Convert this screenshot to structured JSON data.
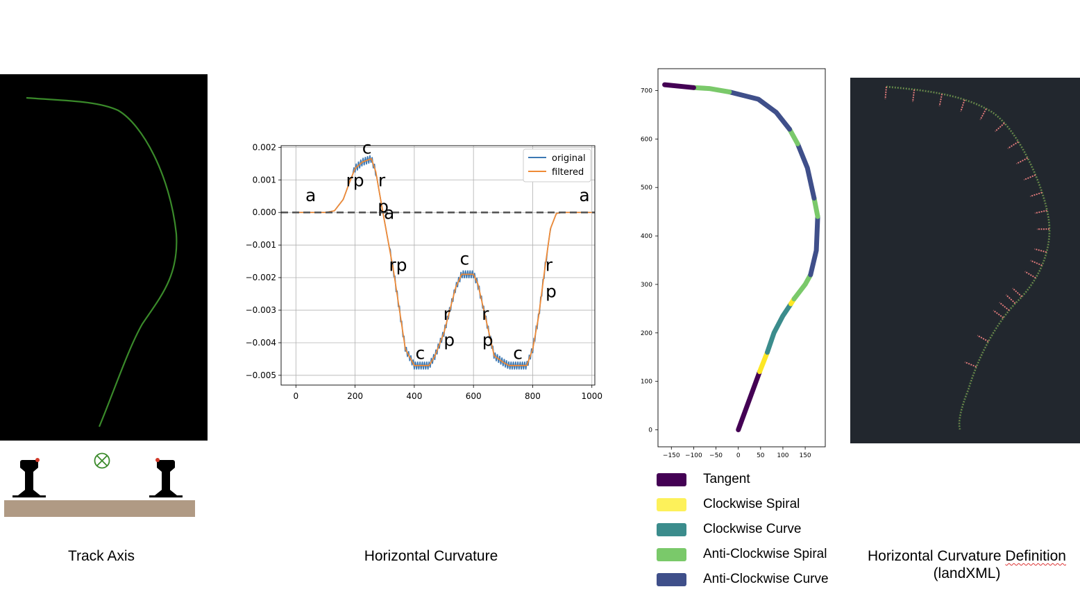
{
  "panels": {
    "track_axis": {
      "caption": "Track Axis",
      "colors": {
        "background": "#000000",
        "track": "#3a8a2a",
        "ballast": "#b09a84",
        "center_mark": "#3a8a2a",
        "rail": "#000000",
        "rail_dot": "#d23a2a"
      }
    },
    "curvature": {
      "caption": "Horizontal Curvature",
      "chart_data": {
        "type": "line",
        "xlim": [
          -50,
          1010
        ],
        "ylim": [
          -0.0053,
          0.00205
        ],
        "x_ticks": [
          0,
          200,
          400,
          600,
          800,
          1000
        ],
        "x_tick_labels": [
          "0",
          "200",
          "400",
          "600",
          "800",
          "1000"
        ],
        "y_ticks": [
          0.002,
          0.001,
          0.0,
          -0.001,
          -0.002,
          -0.003,
          -0.004,
          -0.005
        ],
        "y_tick_labels": [
          "0.002",
          "0.001",
          "0.000",
          "−0.001",
          "−0.002",
          "−0.003",
          "−0.004",
          "−0.005"
        ],
        "grid": true,
        "legend_position": "top-right",
        "reference_line_y": 0.0,
        "series": [
          {
            "name": "original",
            "color": "#3b78b4"
          },
          {
            "name": "filtered",
            "color": "#ef8a36"
          }
        ],
        "x": [
          0,
          100,
          130,
          160,
          180,
          200,
          225,
          255,
          270,
          290,
          310,
          330,
          350,
          370,
          400,
          420,
          450,
          470,
          500,
          520,
          540,
          560,
          580,
          600,
          615,
          630,
          650,
          670,
          700,
          720,
          740,
          760,
          780,
          800,
          820,
          840,
          860,
          880,
          900,
          920,
          1000
        ],
        "filtered_values": [
          0,
          0,
          5e-05,
          0.0004,
          0.0009,
          0.00135,
          0.00155,
          0.00165,
          0.00125,
          0.0002,
          -0.0008,
          -0.0018,
          -0.003,
          -0.0042,
          -0.0047,
          -0.0047,
          -0.0047,
          -0.0044,
          -0.0037,
          -0.003,
          -0.0023,
          -0.0019,
          -0.0019,
          -0.0019,
          -0.0022,
          -0.0028,
          -0.0036,
          -0.0044,
          -0.0046,
          -0.0047,
          -0.0047,
          -0.0047,
          -0.0047,
          -0.0042,
          -0.0032,
          -0.0018,
          -0.0005,
          -3e-05,
          0,
          0,
          0
        ],
        "region_labels": [
          {
            "text": "a",
            "x": 50,
            "y": 0.00035
          },
          {
            "text": "c",
            "x": 240,
            "y": 0.0018
          },
          {
            "text": "rp",
            "x": 200,
            "y": 0.0008
          },
          {
            "text": "r",
            "x": 290,
            "y": 0.0008
          },
          {
            "text": "p",
            "x": 295,
            "y": 0.0
          },
          {
            "text": "a",
            "x": 315,
            "y": -0.0002
          },
          {
            "text": "rp",
            "x": 345,
            "y": -0.0018
          },
          {
            "text": "c",
            "x": 570,
            "y": -0.0016
          },
          {
            "text": "r",
            "x": 510,
            "y": -0.0033
          },
          {
            "text": "p",
            "x": 518,
            "y": -0.0041
          },
          {
            "text": "r",
            "x": 640,
            "y": -0.0033
          },
          {
            "text": "p",
            "x": 648,
            "y": -0.0041
          },
          {
            "text": "c",
            "x": 420,
            "y": -0.0045
          },
          {
            "text": "c",
            "x": 750,
            "y": -0.0045
          },
          {
            "text": "r",
            "x": 855,
            "y": -0.0018
          },
          {
            "text": "p",
            "x": 862,
            "y": -0.0026
          },
          {
            "text": "a",
            "x": 975,
            "y": 0.00035
          }
        ]
      }
    },
    "classification": {
      "chart_data": {
        "type": "scatter",
        "xlim": [
          -180,
          195
        ],
        "ylim": [
          -35,
          745
        ],
        "x_ticks": [
          -150,
          -100,
          -50,
          0,
          50,
          100,
          150
        ],
        "x_tick_labels": [
          "−150",
          "−100",
          "−50",
          "0",
          "50",
          "100",
          "150"
        ],
        "y_ticks": [
          0,
          100,
          200,
          300,
          400,
          500,
          600,
          700
        ],
        "y_tick_labels": [
          "0",
          "100",
          "200",
          "300",
          "400",
          "500",
          "600",
          "700"
        ],
        "grid": false,
        "segments": [
          {
            "class": "Tangent",
            "color": "#440154",
            "points": [
              [
                0,
                0
              ],
              [
                48,
                120
              ]
            ]
          },
          {
            "class": "Clockwise Spiral",
            "color": "#fde725",
            "points": [
              [
                48,
                120
              ],
              [
                65,
                160
              ]
            ]
          },
          {
            "class": "Clockwise Curve",
            "color": "#3b8c8c",
            "points": [
              [
                65,
                160
              ],
              [
                80,
                200
              ],
              [
                100,
                235
              ],
              [
                118,
                260
              ]
            ]
          },
          {
            "class": "Clockwise Spiral",
            "color": "#fde725",
            "points": [
              [
                118,
                260
              ],
              [
                125,
                270
              ]
            ]
          },
          {
            "class": "Anti-Clockwise Spiral",
            "color": "#7ac96a",
            "points": [
              [
                125,
                270
              ],
              [
                150,
                300
              ],
              [
                162,
                320
              ]
            ]
          },
          {
            "class": "Anti-Clockwise Curve",
            "color": "#3f4f8a",
            "points": [
              [
                162,
                320
              ],
              [
                175,
                370
              ],
              [
                178,
                440
              ]
            ]
          },
          {
            "class": "Anti-Clockwise Spiral",
            "color": "#7ac96a",
            "points": [
              [
                178,
                440
              ],
              [
                170,
                478
              ]
            ]
          },
          {
            "class": "Anti-Clockwise Curve",
            "color": "#3f4f8a",
            "points": [
              [
                170,
                478
              ],
              [
                155,
                540
              ],
              [
                133,
                590
              ]
            ]
          },
          {
            "class": "Anti-Clockwise Spiral",
            "color": "#7ac96a",
            "points": [
              [
                133,
                590
              ],
              [
                115,
                620
              ]
            ]
          },
          {
            "class": "Anti-Clockwise Curve",
            "color": "#3f4f8a",
            "points": [
              [
                115,
                620
              ],
              [
                85,
                655
              ],
              [
                45,
                682
              ],
              [
                -20,
                697
              ]
            ]
          },
          {
            "class": "Anti-Clockwise Spiral",
            "color": "#7ac96a",
            "points": [
              [
                -20,
                697
              ],
              [
                -65,
                704
              ],
              [
                -100,
                706
              ]
            ]
          },
          {
            "class": "Tangent",
            "color": "#440154",
            "points": [
              [
                -100,
                706
              ],
              [
                -165,
                712
              ]
            ]
          }
        ]
      },
      "legend": [
        {
          "label": "Tangent",
          "color": "#440154"
        },
        {
          "label": "Clockwise Spiral",
          "color": "#fdf15a"
        },
        {
          "label": "Clockwise Curve",
          "color": "#3b8c8c"
        },
        {
          "label": "Anti-Clockwise Spiral",
          "color": "#7ac96a"
        },
        {
          "label": "Anti-Clockwise Curve",
          "color": "#3f4f8a"
        }
      ]
    },
    "landxml": {
      "caption_line1": "Horizontal Curvature Definition",
      "caption_line2": "(landXML)",
      "colors": {
        "background": "#22272e",
        "track": "#3c7a3a",
        "ticks": "#e07a7a"
      }
    }
  }
}
